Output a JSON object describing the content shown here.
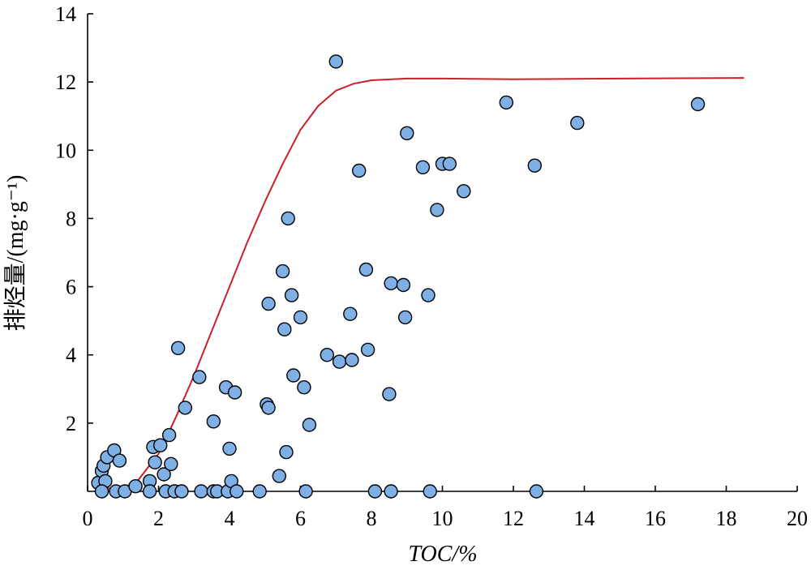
{
  "chart_data": {
    "type": "scatter",
    "xlabel": "TOC/%",
    "ylabel": "排烃量/(mg·g⁻¹)",
    "xlim": [
      0,
      20
    ],
    "ylim": [
      0,
      14
    ],
    "xticks": [
      0,
      2,
      4,
      6,
      8,
      10,
      12,
      14,
      16,
      18,
      20
    ],
    "yticks": [
      2,
      4,
      6,
      8,
      10,
      12,
      14
    ],
    "grid": false,
    "legend": "none",
    "colors": {
      "points": "#7EB0E6",
      "curve": "#CC1F28"
    },
    "series": [
      {
        "type": "scatter",
        "points": [
          [
            0.3,
            0.25
          ],
          [
            0.4,
            0.6
          ],
          [
            0.45,
            0.75
          ],
          [
            0.5,
            0.3
          ],
          [
            0.55,
            1.0
          ],
          [
            0.75,
            1.2
          ],
          [
            0.9,
            0.9
          ],
          [
            0.4,
            0.0
          ],
          [
            0.8,
            0.0
          ],
          [
            1.05,
            0.0
          ],
          [
            1.35,
            0.15
          ],
          [
            1.75,
            0.3
          ],
          [
            1.75,
            0.0
          ],
          [
            1.85,
            1.3
          ],
          [
            1.9,
            0.85
          ],
          [
            2.05,
            1.35
          ],
          [
            2.15,
            0.5
          ],
          [
            2.2,
            0.0
          ],
          [
            2.3,
            1.65
          ],
          [
            2.35,
            0.8
          ],
          [
            2.45,
            0.0
          ],
          [
            2.55,
            4.2
          ],
          [
            2.65,
            0.0
          ],
          [
            2.75,
            2.45
          ],
          [
            3.15,
            3.35
          ],
          [
            3.2,
            0.0
          ],
          [
            3.55,
            0.0
          ],
          [
            3.55,
            2.05
          ],
          [
            3.65,
            0.0
          ],
          [
            3.9,
            3.05
          ],
          [
            3.95,
            0.0
          ],
          [
            4.0,
            1.25
          ],
          [
            4.05,
            0.3
          ],
          [
            4.15,
            2.9
          ],
          [
            4.2,
            0.0
          ],
          [
            4.85,
            0.0
          ],
          [
            5.05,
            2.55
          ],
          [
            5.1,
            2.45
          ],
          [
            5.1,
            5.5
          ],
          [
            5.4,
            0.45
          ],
          [
            5.5,
            6.45
          ],
          [
            5.55,
            4.75
          ],
          [
            5.6,
            1.15
          ],
          [
            5.65,
            8.0
          ],
          [
            5.75,
            5.75
          ],
          [
            5.8,
            3.4
          ],
          [
            6.0,
            5.1
          ],
          [
            6.1,
            3.05
          ],
          [
            6.15,
            0.0
          ],
          [
            6.25,
            1.95
          ],
          [
            6.75,
            4.0
          ],
          [
            7.0,
            12.6
          ],
          [
            7.1,
            3.8
          ],
          [
            7.4,
            5.2
          ],
          [
            7.45,
            3.85
          ],
          [
            7.65,
            9.4
          ],
          [
            7.85,
            6.5
          ],
          [
            7.9,
            4.15
          ],
          [
            8.1,
            0.0
          ],
          [
            8.5,
            2.85
          ],
          [
            8.55,
            6.1
          ],
          [
            8.55,
            0.0
          ],
          [
            8.9,
            6.05
          ],
          [
            8.95,
            5.1
          ],
          [
            9.0,
            10.5
          ],
          [
            9.45,
            9.5
          ],
          [
            9.6,
            5.75
          ],
          [
            9.65,
            0.0
          ],
          [
            9.85,
            8.25
          ],
          [
            10.0,
            9.6
          ],
          [
            10.2,
            9.6
          ],
          [
            10.6,
            8.8
          ],
          [
            11.8,
            11.4
          ],
          [
            12.6,
            9.55
          ],
          [
            12.65,
            0.0
          ],
          [
            13.8,
            10.8
          ],
          [
            17.2,
            11.35
          ]
        ]
      },
      {
        "type": "line",
        "points": [
          [
            0.4,
            0.08
          ],
          [
            1.0,
            0.1
          ],
          [
            1.4,
            0.3
          ],
          [
            2.0,
            1.1
          ],
          [
            2.5,
            2.2
          ],
          [
            3.0,
            3.4
          ],
          [
            3.5,
            4.7
          ],
          [
            4.0,
            6.0
          ],
          [
            4.5,
            7.3
          ],
          [
            5.0,
            8.5
          ],
          [
            5.5,
            9.6
          ],
          [
            6.0,
            10.6
          ],
          [
            6.5,
            11.3
          ],
          [
            7.0,
            11.75
          ],
          [
            7.5,
            11.95
          ],
          [
            8.0,
            12.05
          ],
          [
            9.0,
            12.1
          ],
          [
            10.0,
            12.1
          ],
          [
            12.0,
            12.08
          ],
          [
            15.0,
            12.1
          ],
          [
            18.5,
            12.12
          ]
        ]
      }
    ]
  }
}
